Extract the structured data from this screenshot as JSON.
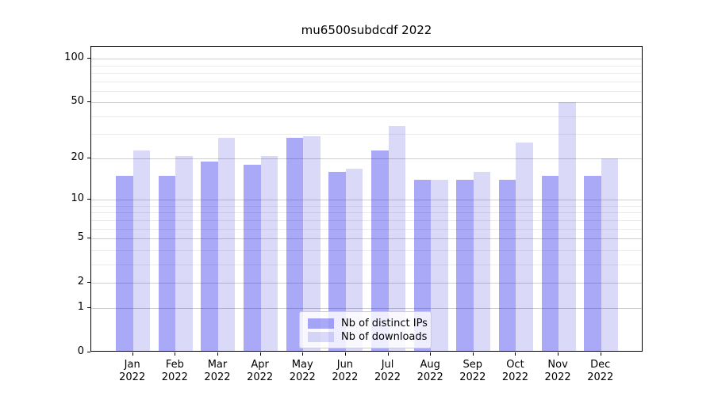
{
  "title": "mu6500subdcdf 2022",
  "chart_data": {
    "type": "bar",
    "title": "mu6500subdcdf 2022",
    "scale": "log(1+y) symlog-like",
    "grid": true,
    "legend_position": "lower center",
    "categories": [
      "Jan",
      "Feb",
      "Mar",
      "Apr",
      "May",
      "Jun",
      "Jul",
      "Aug",
      "Sep",
      "Oct",
      "Nov",
      "Dec"
    ],
    "category_year": "2022",
    "series": [
      {
        "name": "Nb of distinct IPs",
        "color": "rgba(8,8,236,0.35)",
        "solid_color": "#a8a8f8",
        "values": [
          15,
          15,
          19,
          18,
          28,
          16,
          23,
          14,
          14,
          14,
          15,
          15
        ]
      },
      {
        "name": "Nb of downloads",
        "color": "rgba(24,24,211,0.16)",
        "solid_color": "#dadaf8",
        "values": [
          23,
          21,
          28,
          21,
          29,
          17,
          34,
          14,
          16,
          26,
          50,
          20
        ]
      }
    ],
    "y_major_ticks": [
      0,
      1,
      2,
      5,
      10,
      20,
      50,
      100
    ],
    "y_minor_gridlines": [
      3,
      4,
      6,
      7,
      8,
      9,
      30,
      40,
      60,
      70,
      80,
      90
    ],
    "ylim": [
      0,
      120
    ],
    "xlabel": "",
    "ylabel": ""
  }
}
